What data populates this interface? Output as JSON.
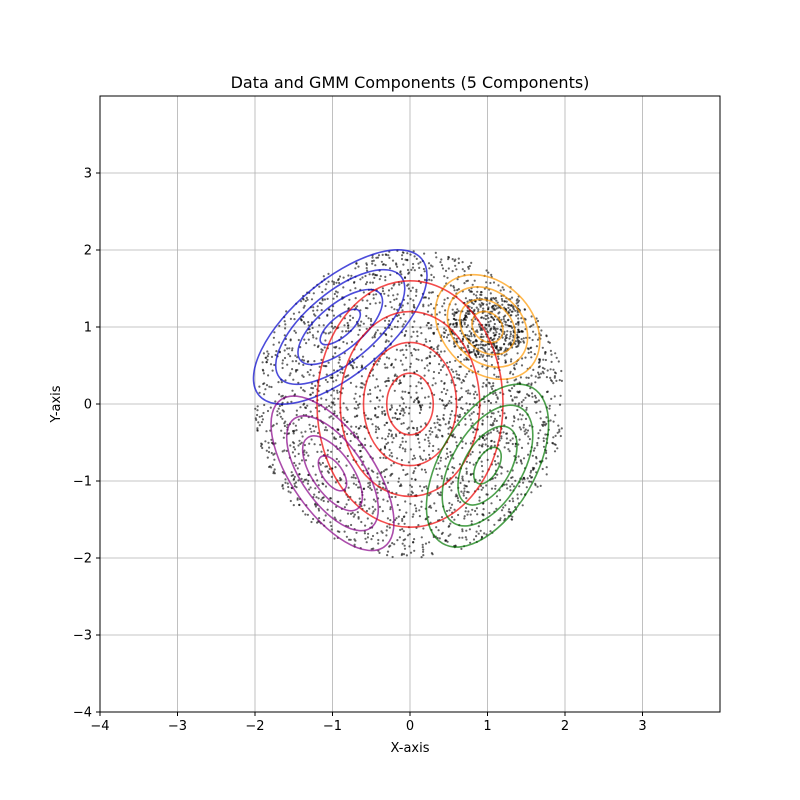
{
  "chart_data": {
    "type": "scatter",
    "title": "Data and GMM Components (5 Components)",
    "xlabel": "X-axis",
    "ylabel": "Y-axis",
    "xlim": [
      -4,
      4
    ],
    "ylim": [
      -4,
      4
    ],
    "xticks": [
      -4,
      -3,
      -2,
      -1,
      0,
      1,
      2,
      3
    ],
    "xtick_labels": [
      "−4",
      "−3",
      "−2",
      "−1",
      "0",
      "1",
      "2",
      "3"
    ],
    "yticks": [
      -4,
      -3,
      -2,
      -1,
      0,
      1,
      2,
      3
    ],
    "ytick_labels": [
      "−4",
      "−3",
      "−2",
      "−1",
      "0",
      "1",
      "2",
      "3"
    ],
    "grid": true,
    "scatter": {
      "color": "#000000",
      "opacity": 0.6,
      "region": "disk of radius 2 centered at (0, 0)",
      "point_count": 3000
    },
    "components": [
      {
        "color": "#0000cc",
        "mean": [
          -0.9,
          1.0
        ],
        "contours": [
          [
            0.32,
            0.13,
            40
          ],
          [
            0.67,
            0.29,
            40
          ],
          [
            1.02,
            0.45,
            40
          ],
          [
            1.37,
            0.61,
            40
          ]
        ]
      },
      {
        "color": "#ff9900",
        "mean": [
          1.0,
          1.0
        ],
        "contours": [
          [
            0.22,
            0.18,
            -45
          ],
          [
            0.4,
            0.31,
            -45
          ],
          [
            0.58,
            0.45,
            -45
          ],
          [
            0.76,
            0.58,
            -45
          ]
        ]
      },
      {
        "color": "#ee0000",
        "mean": [
          0.0,
          0.0
        ],
        "contours": [
          [
            0.3,
            0.4,
            0
          ],
          [
            0.6,
            0.8,
            0
          ],
          [
            0.9,
            1.2,
            0
          ],
          [
            1.2,
            1.6,
            0
          ]
        ]
      },
      {
        "color": "#880088",
        "mean": [
          -1.0,
          -0.9
        ],
        "contours": [
          [
            0.26,
            0.13,
            -55
          ],
          [
            0.56,
            0.26,
            -55
          ],
          [
            0.86,
            0.4,
            -55
          ],
          [
            1.16,
            0.53,
            -55
          ]
        ]
      },
      {
        "color": "#007700",
        "mean": [
          1.0,
          -0.8
        ],
        "contours": [
          [
            0.26,
            0.14,
            60
          ],
          [
            0.56,
            0.3,
            60
          ],
          [
            0.86,
            0.46,
            60
          ],
          [
            1.16,
            0.62,
            60
          ]
        ]
      }
    ]
  }
}
